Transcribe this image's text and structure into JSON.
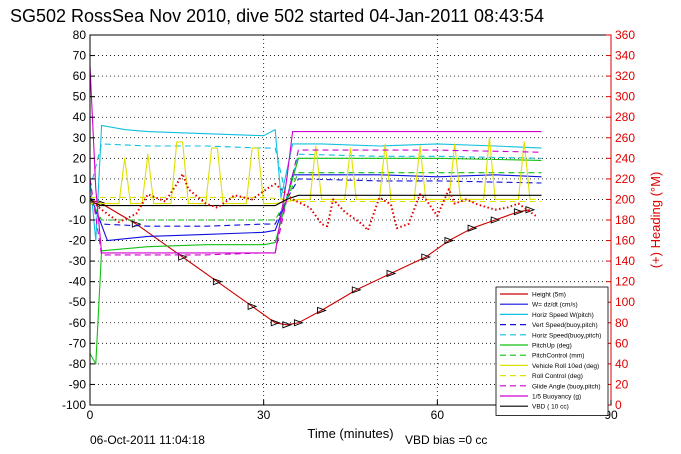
{
  "chart_data": {
    "type": "line",
    "title": "SG502 RossSea Nov 2010, dive 502 started 04-Jan-2011 08:43:54",
    "xlabel": "Time (minutes)",
    "ylabel_left": "",
    "ylabel_right": "(+) Heading (°M)",
    "xlim": [
      0,
      90
    ],
    "ylim_left": [
      -100,
      80
    ],
    "ylim_right": [
      0,
      360
    ],
    "x_ticks": [
      0,
      30,
      60,
      90
    ],
    "y_ticks_left": [
      -100,
      -90,
      -80,
      -70,
      -60,
      -50,
      -40,
      -30,
      -20,
      -10,
      0,
      10,
      20,
      30,
      40,
      50,
      60,
      70,
      80
    ],
    "y_ticks_right": [
      0,
      20,
      40,
      60,
      80,
      100,
      120,
      140,
      160,
      180,
      200,
      220,
      240,
      260,
      280,
      300,
      320,
      340,
      360
    ],
    "grid": true,
    "legend_position": "bottom-right",
    "footer_left": "06-Oct-2011 11:04:18",
    "footer_right": "VBD bias =0 cc",
    "heading_color": "#e00000",
    "series": [
      {
        "name": "Height (5m)",
        "color": "#cc0000",
        "dash": "solid",
        "axis": "left",
        "x": [
          0,
          2,
          8,
          16,
          22,
          28,
          32,
          34,
          36,
          40,
          46,
          52,
          58,
          62,
          66,
          70,
          74,
          76
        ],
        "y": [
          0,
          -2,
          -12,
          -28,
          -40,
          -52,
          -60,
          -61,
          -60,
          -54,
          -44,
          -36,
          -28,
          -20,
          -14,
          -10,
          -6,
          -5
        ]
      },
      {
        "name": "W= dz/dt (cm/s)",
        "color": "#1010e0",
        "dash": "solid",
        "axis": "left",
        "x": [
          0,
          1,
          3,
          10,
          20,
          30,
          32,
          34,
          35,
          40,
          50,
          60,
          70,
          78
        ],
        "y": [
          2,
          -5,
          -20,
          -18,
          -17,
          -16,
          -15,
          0,
          12,
          12,
          12,
          11,
          12,
          11
        ]
      },
      {
        "name": "Horiz Speed W(pitch)",
        "color": "#10c0e0",
        "dash": "solid",
        "axis": "left",
        "x": [
          0,
          1,
          2,
          6,
          10,
          20,
          30,
          32,
          33,
          35,
          40,
          50,
          60,
          70,
          78
        ],
        "y": [
          10,
          -20,
          36,
          34,
          33,
          32,
          31,
          34,
          1,
          27,
          27,
          26,
          27,
          26,
          25
        ]
      },
      {
        "name": "Vert Speed(buoy,pitch)",
        "color": "#1010e0",
        "dash": "dashed",
        "axis": "left",
        "x": [
          0,
          2,
          10,
          20,
          30,
          32,
          34,
          36,
          50,
          60,
          78
        ],
        "y": [
          0,
          -12,
          -13,
          -13,
          -12,
          -12,
          0,
          10,
          9,
          9,
          8
        ]
      },
      {
        "name": "Horiz Speed(buoy,pitch)",
        "color": "#10c0e0",
        "dash": "dashed",
        "axis": "left",
        "x": [
          0,
          2,
          10,
          20,
          30,
          32,
          34,
          36,
          50,
          60,
          78
        ],
        "y": [
          5,
          27,
          26,
          26,
          25,
          25,
          0,
          22,
          21,
          21,
          20
        ]
      },
      {
        "name": "PitchUp (deg)",
        "color": "#10c010",
        "dash": "solid",
        "axis": "left",
        "x": [
          0,
          1,
          2,
          10,
          20,
          30,
          32,
          34,
          36,
          50,
          60,
          78
        ],
        "y": [
          -75,
          -80,
          -25,
          -23,
          -22,
          -22,
          -21,
          0,
          20,
          20,
          20,
          19
        ]
      },
      {
        "name": "PitchControl (mm)",
        "color": "#10c010",
        "dash": "dashed",
        "axis": "left",
        "x": [
          0,
          2,
          10,
          20,
          30,
          32,
          34,
          36,
          50,
          60,
          78
        ],
        "y": [
          0,
          -10,
          -10,
          -10,
          -10,
          -10,
          0,
          13,
          13,
          13,
          13
        ]
      },
      {
        "name": "Vehicle Roll 10ed (deg)",
        "color": "#e0e000",
        "dash": "solid",
        "axis": "left",
        "x": [
          0,
          3,
          5,
          6,
          7,
          9,
          10,
          11,
          14,
          15,
          16,
          17,
          20,
          21,
          22,
          23,
          27,
          28,
          29,
          30,
          32,
          36,
          38,
          39,
          40,
          41,
          44,
          45,
          46,
          47,
          50,
          51,
          52,
          53,
          56,
          57,
          58,
          59,
          62,
          63,
          64,
          65,
          68,
          69,
          70,
          71,
          74,
          75,
          76,
          77
        ],
        "y": [
          -2,
          -2,
          -2,
          20,
          -2,
          -2,
          22,
          -2,
          -2,
          28,
          28,
          -2,
          -2,
          25,
          25,
          -2,
          -2,
          25,
          25,
          -2,
          -2,
          0,
          0,
          26,
          0,
          0,
          0,
          25,
          0,
          0,
          0,
          27,
          0,
          0,
          0,
          26,
          0,
          0,
          0,
          27,
          0,
          0,
          0,
          30,
          0,
          0,
          0,
          28,
          0,
          0
        ]
      },
      {
        "name": "Roll Control (deg)",
        "color": "#e0e000",
        "dash": "dashed",
        "axis": "left",
        "x": [
          0,
          10,
          20,
          30,
          34,
          36,
          50,
          60,
          78
        ],
        "y": [
          1,
          1,
          1,
          1,
          0,
          -1,
          -1,
          -1,
          -1
        ]
      },
      {
        "name": "Glide Angle (buoy,pitch)",
        "color": "#d000d0",
        "dash": "dashed",
        "axis": "left",
        "x": [
          0,
          2,
          10,
          20,
          30,
          32,
          34,
          36,
          50,
          60,
          78
        ],
        "y": [
          10,
          -27,
          -27,
          -27,
          -26,
          -26,
          0,
          24,
          24,
          24,
          23
        ]
      },
      {
        "name": "1/5 Buoyancy (g)",
        "color": "#d000d0",
        "dash": "solid",
        "axis": "left",
        "x": [
          0,
          1,
          2,
          10,
          20,
          30,
          32,
          34,
          35,
          50,
          60,
          78
        ],
        "y": [
          65,
          5,
          -26,
          -26,
          -26,
          -26,
          -26,
          10,
          33,
          33,
          33,
          33
        ]
      },
      {
        "name": "VBD ( 10 cc)",
        "color": "#000000",
        "dash": "solid",
        "axis": "left",
        "x": [
          0,
          1,
          2,
          32,
          34,
          36,
          78
        ],
        "y": [
          0,
          -2,
          -3,
          -3,
          0,
          2,
          2
        ]
      },
      {
        "name": "Heading",
        "color": "#e00000",
        "dash": "dotted",
        "axis": "right",
        "in_legend": false,
        "x": [
          0,
          2,
          5,
          8,
          10,
          13,
          15,
          16,
          17,
          20,
          22,
          25,
          28,
          31,
          32,
          35,
          38,
          40,
          41,
          42,
          44,
          47,
          48,
          50,
          52,
          53,
          55,
          57,
          58,
          60,
          62,
          63,
          65,
          67,
          70,
          72,
          74,
          76,
          77
        ],
        "y": [
          200,
          190,
          178,
          186,
          205,
          198,
          215,
          225,
          210,
          196,
          192,
          204,
          200,
          212,
          215,
          200,
          192,
          176,
          174,
          200,
          188,
          176,
          170,
          202,
          195,
          172,
          176,
          205,
          200,
          184,
          210,
          196,
          200,
          195,
          190,
          192,
          196,
          188,
          184
        ]
      }
    ]
  }
}
